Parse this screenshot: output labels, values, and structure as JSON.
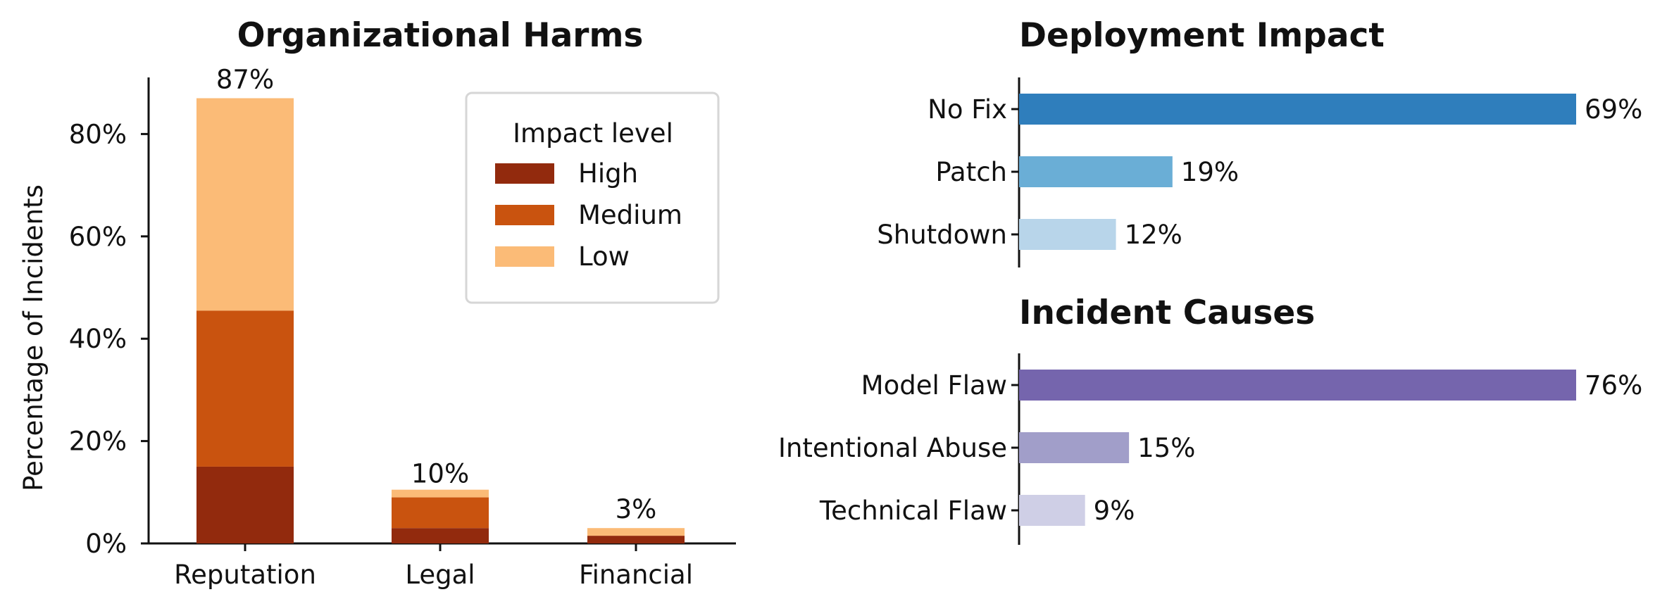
{
  "chart_data": [
    {
      "type": "bar",
      "stacked": true,
      "title": "Organizational Harms",
      "categories": [
        "Reputation",
        "Legal",
        "Financial"
      ],
      "series": [
        {
          "name": "High",
          "values": [
            15,
            3,
            1.5
          ],
          "color": "#922a0d"
        },
        {
          "name": "Medium",
          "values": [
            30.5,
            6,
            0
          ],
          "color": "#c9530f"
        },
        {
          "name": "Low",
          "values": [
            41.5,
            1.5,
            1.5
          ],
          "color": "#fbbb77"
        }
      ],
      "totals": [
        87,
        10,
        3
      ],
      "total_labels": [
        "87%",
        "10%",
        "3%"
      ],
      "xlabel": "",
      "ylabel": "Percentage of Incidents",
      "ylim": [
        0,
        91
      ],
      "yticks": [
        0,
        20,
        40,
        60,
        80
      ],
      "ytick_labels": [
        "0%",
        "20%",
        "40%",
        "60%",
        "80%"
      ],
      "legend": {
        "title": "Impact level",
        "position": "top-right"
      },
      "grid": false
    },
    {
      "type": "bar",
      "orientation": "horizontal",
      "title": "Deployment Impact",
      "categories": [
        "No Fix",
        "Patch",
        "Shutdown"
      ],
      "values": [
        69,
        19,
        12
      ],
      "value_labels": [
        "69%",
        "19%",
        "12%"
      ],
      "colors": [
        "#2f7ebc",
        "#6aaed6",
        "#b8d5ea"
      ],
      "xlim": [
        0,
        69
      ],
      "grid": false
    },
    {
      "type": "bar",
      "orientation": "horizontal",
      "title": "Incident Causes",
      "categories": [
        "Model Flaw",
        "Intentional Abuse",
        "Technical Flaw"
      ],
      "values": [
        76,
        15,
        9
      ],
      "value_labels": [
        "76%",
        "15%",
        "9%"
      ],
      "colors": [
        "#7565ad",
        "#a19ec9",
        "#cfcfe6"
      ],
      "xlim": [
        0,
        76
      ],
      "grid": false
    }
  ]
}
